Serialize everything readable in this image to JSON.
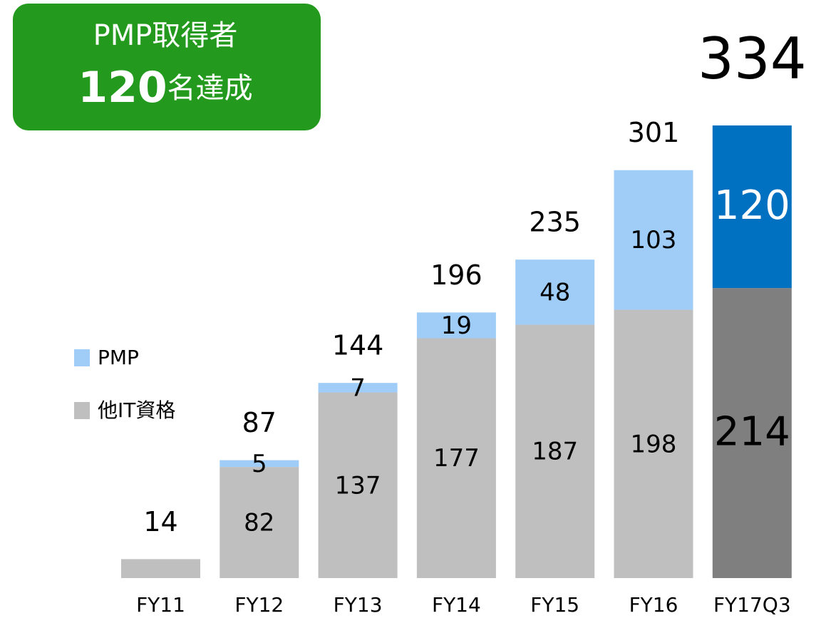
{
  "chart_data": {
    "type": "stacked_bar",
    "badge": {
      "line1": "PMP取得者",
      "number": "120",
      "suffix": "名達成"
    },
    "categories": [
      "FY11",
      "FY12",
      "FY13",
      "FY14",
      "FY15",
      "FY16",
      "FY17Q3"
    ],
    "series": [
      {
        "name": "他IT資格",
        "color": "#bfbfbf",
        "colors": [
          "#bfbfbf",
          "#bfbfbf",
          "#bfbfbf",
          "#bfbfbf",
          "#bfbfbf",
          "#bfbfbf",
          "#7f7f7f"
        ],
        "values": [
          14,
          82,
          137,
          177,
          187,
          198,
          214
        ]
      },
      {
        "name": "PMP",
        "color": "#9fcdf8",
        "colors": [
          "#9fcdf8",
          "#9fcdf8",
          "#9fcdf8",
          "#9fcdf8",
          "#9fcdf8",
          "#9fcdf8",
          "#0070c0"
        ],
        "values": [
          null,
          5,
          7,
          19,
          48,
          103,
          120
        ]
      }
    ],
    "totals": [
      14,
      87,
      144,
      196,
      235,
      301,
      334
    ],
    "legend": "left"
  }
}
